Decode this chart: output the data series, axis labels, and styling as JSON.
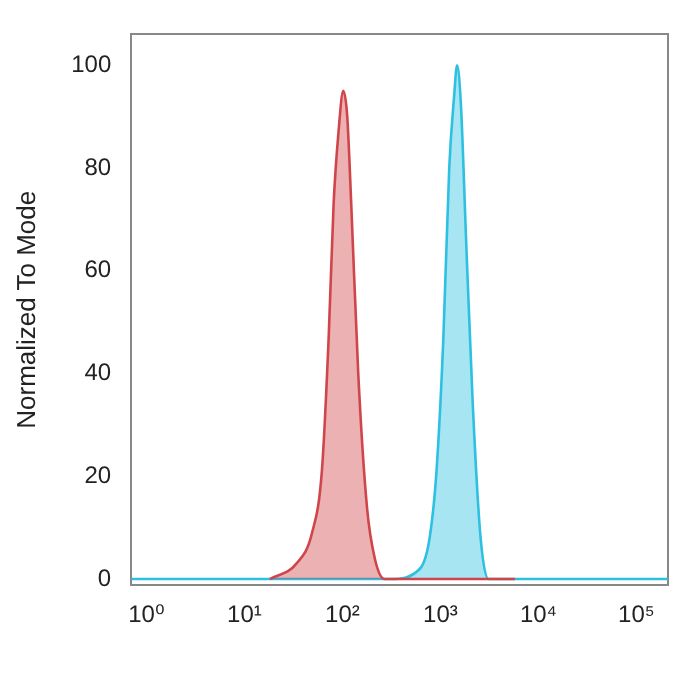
{
  "chart_data": {
    "type": "area",
    "ylabel": "Normalized To Mode",
    "log": "x",
    "xlim": [
      0.7,
      210000
    ],
    "ylim": [
      -1.2,
      106
    ],
    "xticks": [
      {
        "value": 1,
        "label": "10⁰"
      },
      {
        "value": 10,
        "label": "10¹"
      },
      {
        "value": 100,
        "label": "10²"
      },
      {
        "value": 1000,
        "label": "10³"
      },
      {
        "value": 10000,
        "label": "10⁴"
      },
      {
        "value": 100000,
        "label": "10⁵"
      }
    ],
    "yticks": [
      0,
      20,
      40,
      60,
      80,
      100
    ],
    "series": [
      {
        "color": "#d0454a",
        "x": [
          18.2,
          33.9,
          49,
          61.7,
          72.4,
          81.3,
          91.2,
          102,
          112,
          123,
          145,
          178,
          214,
          269,
          5750
        ],
        "values": [
          0,
          3,
          9,
          21,
          47,
          73,
          87,
          95,
          90,
          73,
          40,
          14,
          4,
          0,
          0
        ]
      },
      {
        "color": "#2ec0e0",
        "x": [
          0.7,
          309,
          617,
          776,
          912,
          1072,
          1230,
          1380,
          1479,
          1622,
          1820,
          2138,
          2570,
          3090,
          3981,
          210000
        ],
        "values": [
          0,
          0,
          2,
          8,
          21,
          47,
          80,
          94,
          100,
          92,
          67,
          34,
          8,
          0,
          0,
          0
        ]
      }
    ]
  }
}
